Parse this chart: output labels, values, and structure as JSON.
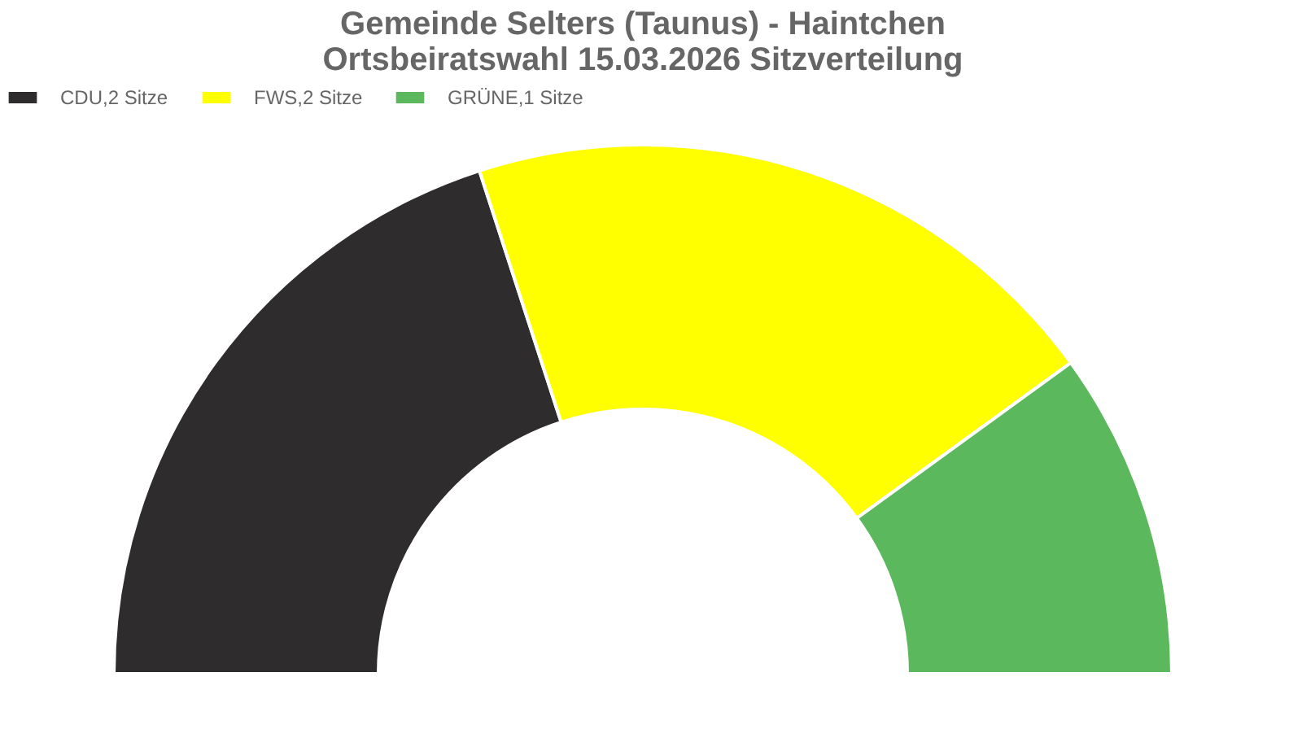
{
  "chart_data": {
    "type": "donut",
    "title": [
      "Gemeinde Selters (Taunus) - Haintchen",
      "Ortsbeiratswahl 15.03.2026 Sitzverteilung"
    ],
    "categories": [
      "CDU,2 Sitze",
      "FWS,2 Sitze",
      "GRÜNE,1 Sitze"
    ],
    "values": [
      2,
      2,
      1
    ],
    "colors": [
      "#2e2c2c",
      "#ffff00",
      "#5cb85c"
    ],
    "legend": "top"
  }
}
